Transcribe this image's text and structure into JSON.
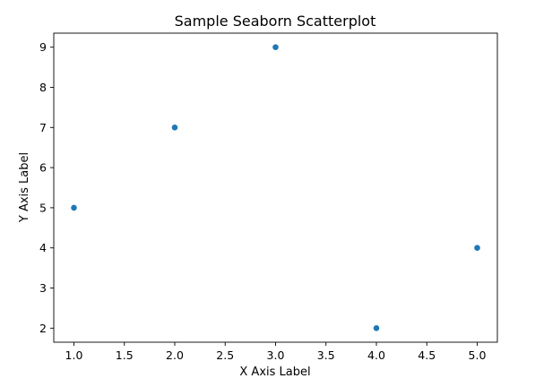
{
  "chart_data": {
    "type": "scatter",
    "title": "Sample Seaborn Scatterplot",
    "xlabel": "X Axis Label",
    "ylabel": "Y Axis Label",
    "x": [
      1,
      2,
      3,
      4,
      5
    ],
    "y": [
      5,
      7,
      9,
      2,
      4
    ],
    "xlim": [
      0.8,
      5.2
    ],
    "ylim": [
      1.65,
      9.35
    ],
    "xticks": [
      1.0,
      1.5,
      2.0,
      2.5,
      3.0,
      3.5,
      4.0,
      4.5,
      5.0
    ],
    "xtick_labels": [
      "1.0",
      "1.5",
      "2.0",
      "2.5",
      "3.0",
      "3.5",
      "4.0",
      "4.5",
      "5.0"
    ],
    "yticks": [
      2,
      3,
      4,
      5,
      6,
      7,
      8,
      9
    ],
    "ytick_labels": [
      "2",
      "3",
      "4",
      "5",
      "6",
      "7",
      "8",
      "9"
    ],
    "grid": false,
    "marker_color": "#1f77b4"
  }
}
